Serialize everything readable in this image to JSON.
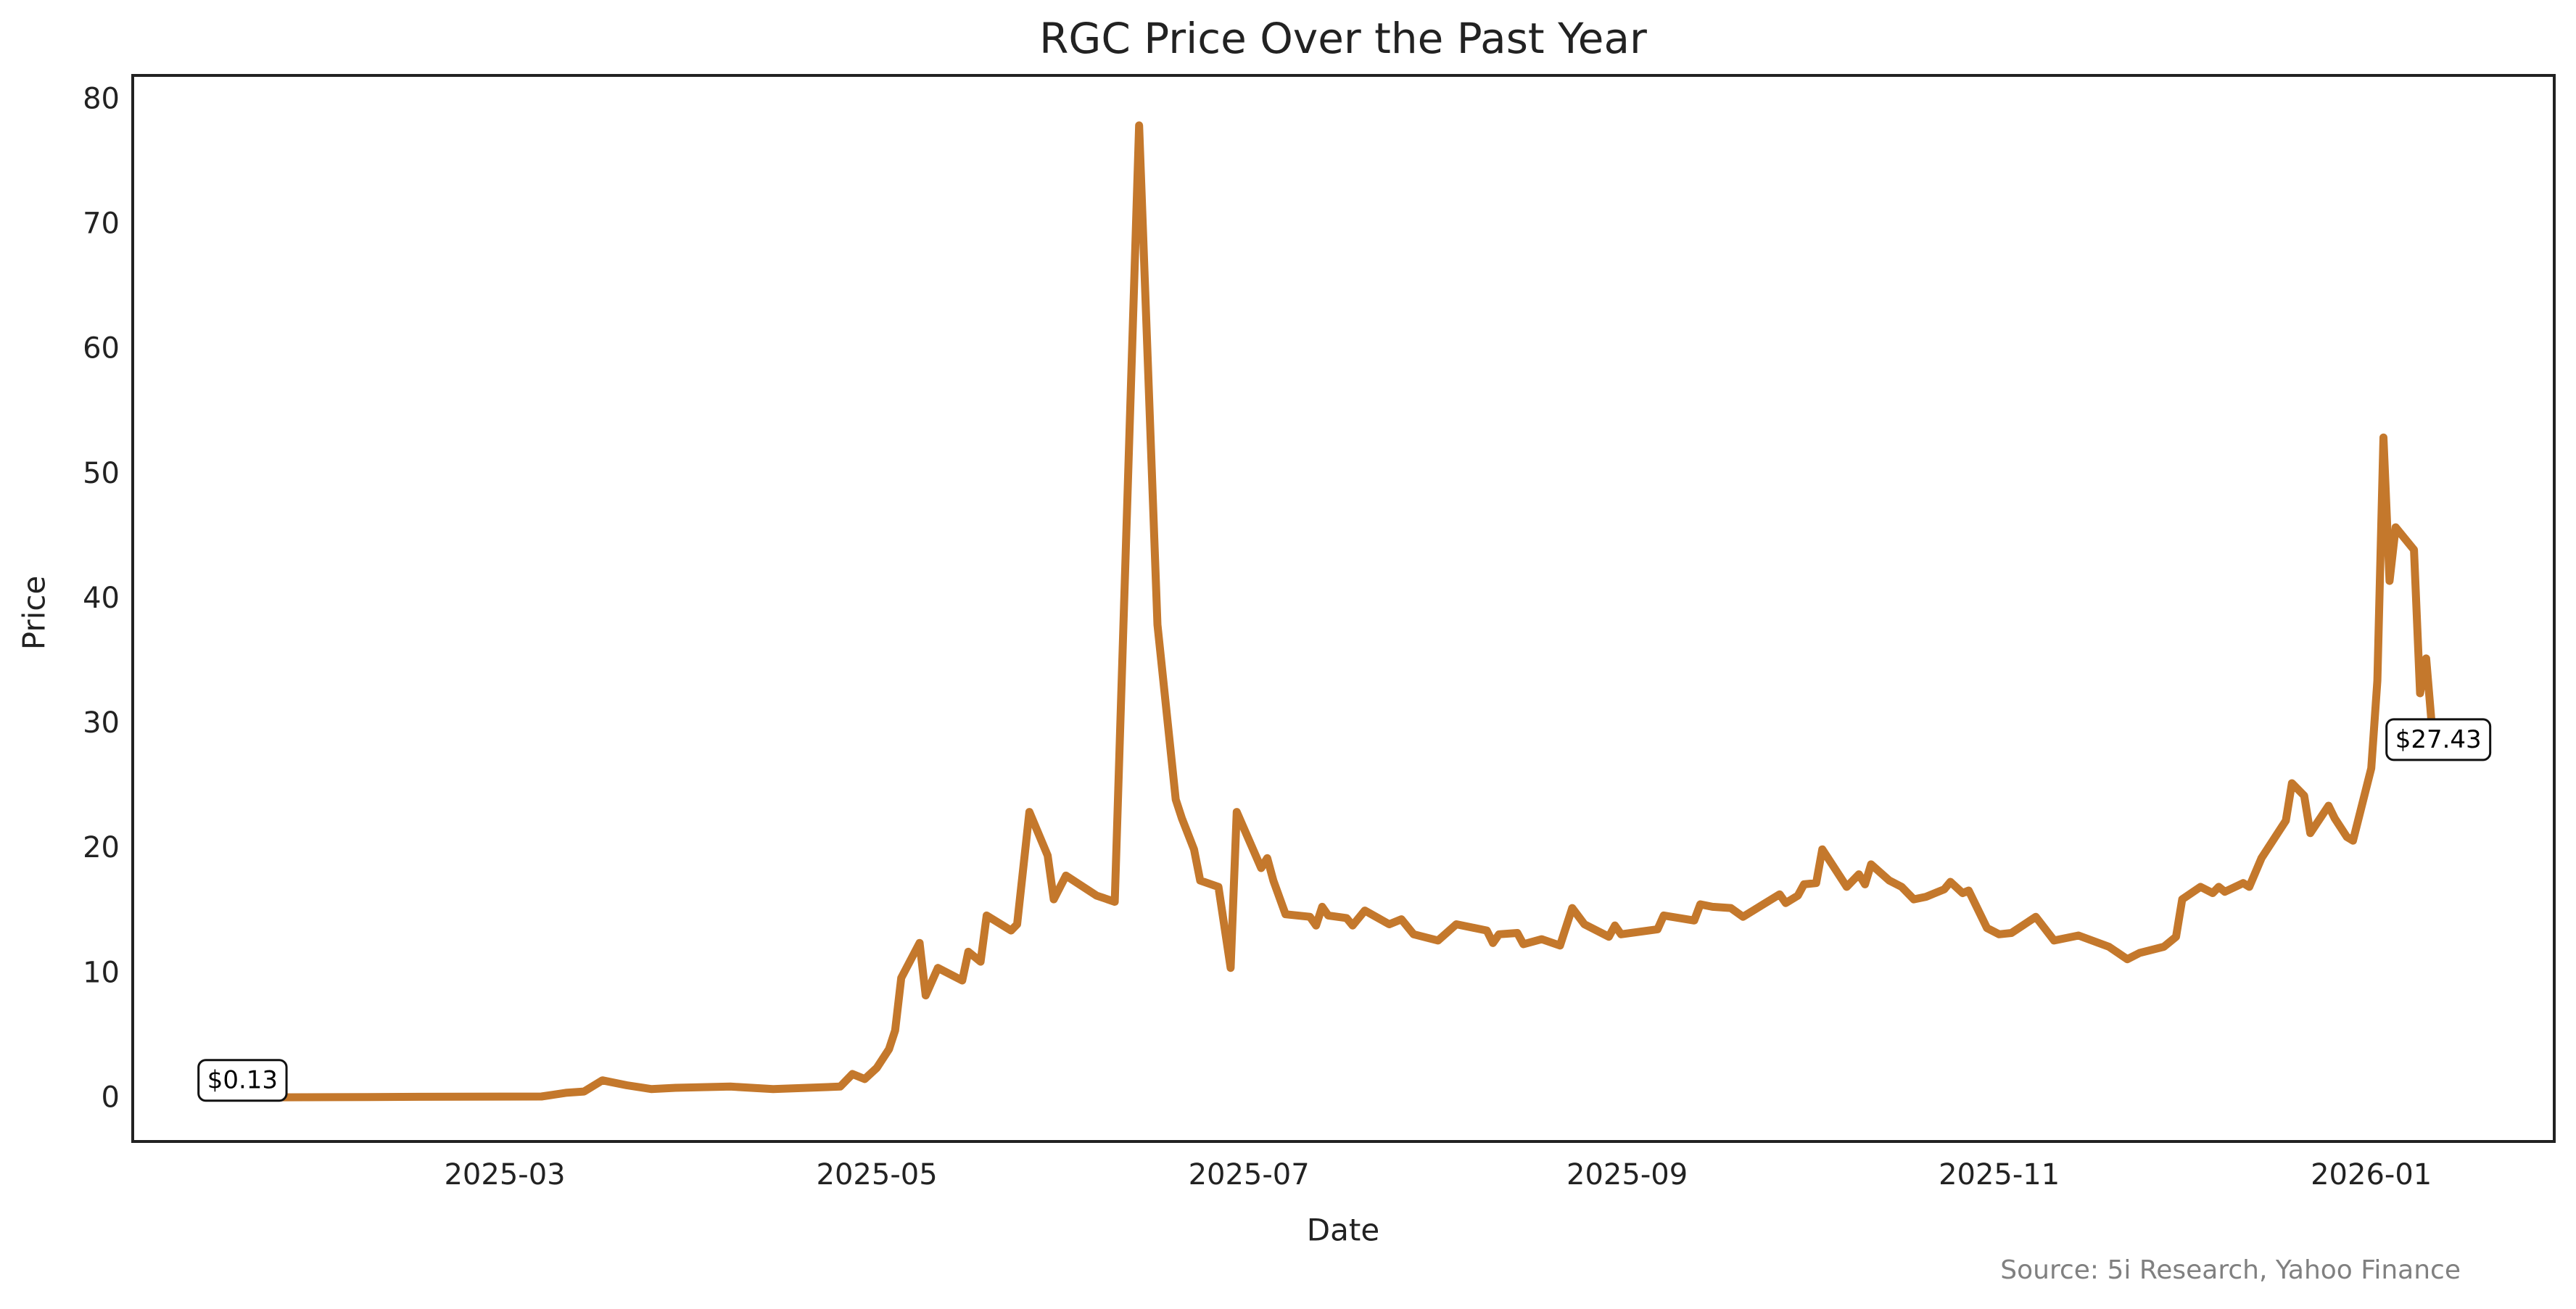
{
  "chart_data": {
    "type": "line",
    "title": "RGC Price Over the Past Year",
    "x_label": "Date",
    "y_label": "Price",
    "source": "Source: 5i Research, Yahoo Finance",
    "grid": false,
    "xlim": [
      "2024-12-30",
      "2026-01-31"
    ],
    "xticks": [
      "2025-03",
      "2025-05",
      "2025-07",
      "2025-09",
      "2025-11",
      "2026-01"
    ],
    "ylim": [
      -3.4,
      82
    ],
    "yticks": [
      0,
      10,
      20,
      30,
      40,
      50,
      60,
      70,
      80
    ],
    "x": [
      "2025-01-17",
      "2025-02-01",
      "2025-02-15",
      "2025-03-07",
      "2025-03-11",
      "2025-03-14",
      "2025-03-17",
      "2025-03-21",
      "2025-03-25",
      "2025-03-29",
      "2025-04-07",
      "2025-04-14",
      "2025-04-25",
      "2025-04-27",
      "2025-04-29",
      "2025-05-01",
      "2025-05-03",
      "2025-05-04",
      "2025-05-05",
      "2025-05-08",
      "2025-05-09",
      "2025-05-11",
      "2025-05-15",
      "2025-05-16",
      "2025-05-18",
      "2025-05-19",
      "2025-05-23",
      "2025-05-24",
      "2025-05-26",
      "2025-05-29",
      "2025-05-30",
      "2025-06-01",
      "2025-06-06",
      "2025-06-09",
      "2025-06-13",
      "2025-06-16",
      "2025-06-19",
      "2025-06-20",
      "2025-06-22",
      "2025-06-23",
      "2025-06-26",
      "2025-06-28",
      "2025-06-29",
      "2025-07-03",
      "2025-07-04",
      "2025-07-05",
      "2025-07-07",
      "2025-07-11",
      "2025-07-12",
      "2025-07-13",
      "2025-07-14",
      "2025-07-17",
      "2025-07-18",
      "2025-07-20",
      "2025-07-24",
      "2025-07-26",
      "2025-07-28",
      "2025-08-01",
      "2025-08-04",
      "2025-08-09",
      "2025-08-10",
      "2025-08-11",
      "2025-08-14",
      "2025-08-15",
      "2025-08-18",
      "2025-08-21",
      "2025-08-23",
      "2025-08-25",
      "2025-08-29",
      "2025-08-30",
      "2025-08-31",
      "2025-09-06",
      "2025-09-07",
      "2025-09-12",
      "2025-09-13",
      "2025-09-15",
      "2025-09-18",
      "2025-09-20",
      "2025-09-23",
      "2025-09-26",
      "2025-09-27",
      "2025-09-29",
      "2025-09-30",
      "2025-10-02",
      "2025-10-03",
      "2025-10-05",
      "2025-10-07",
      "2025-10-09",
      "2025-10-10",
      "2025-10-11",
      "2025-10-14",
      "2025-10-16",
      "2025-10-18",
      "2025-10-20",
      "2025-10-23",
      "2025-10-24",
      "2025-10-26",
      "2025-10-27",
      "2025-10-30",
      "2025-11-01",
      "2025-11-03",
      "2025-11-07",
      "2025-11-10",
      "2025-11-14",
      "2025-11-19",
      "2025-11-22",
      "2025-11-24",
      "2025-11-28",
      "2025-11-30",
      "2025-12-01",
      "2025-12-04",
      "2025-12-06",
      "2025-12-07",
      "2025-12-08",
      "2025-12-11",
      "2025-12-12",
      "2025-12-14",
      "2025-12-18",
      "2025-12-19",
      "2025-12-21",
      "2025-12-22",
      "2025-12-25",
      "2025-12-26",
      "2025-12-28",
      "2025-12-29",
      "2026-01-01",
      "2026-01-02",
      "2026-01-03",
      "2026-01-04",
      "2026-01-05",
      "2026-01-08",
      "2026-01-09",
      "2026-01-10",
      "2026-01-11",
      "2026-01-12"
    ],
    "series": [
      {
        "name": "RGC",
        "color": "#c4782c",
        "values": [
          0.13,
          0.15,
          0.18,
          0.2,
          0.5,
          0.6,
          1.5,
          1.1,
          0.8,
          0.9,
          1.0,
          0.8,
          1.0,
          2.0,
          1.6,
          2.5,
          4.0,
          5.5,
          9.7,
          12.5,
          8.3,
          10.5,
          9.5,
          11.8,
          11.0,
          14.7,
          13.5,
          14.0,
          23.0,
          19.5,
          16.0,
          17.9,
          16.3,
          15.8,
          78.0,
          38.0,
          24.0,
          22.5,
          20.0,
          17.5,
          17.0,
          10.5,
          23.0,
          18.5,
          19.3,
          17.5,
          14.8,
          14.6,
          13.9,
          15.4,
          14.7,
          14.5,
          13.9,
          15.1,
          14.0,
          14.4,
          13.2,
          12.7,
          14.0,
          13.5,
          12.5,
          13.2,
          13.3,
          12.4,
          12.8,
          12.3,
          15.3,
          14.0,
          13.0,
          13.9,
          13.2,
          13.6,
          14.7,
          14.3,
          15.6,
          15.4,
          15.3,
          14.6,
          15.5,
          16.4,
          15.7,
          16.3,
          17.2,
          17.3,
          20.0,
          18.5,
          17.0,
          18.0,
          17.2,
          18.8,
          17.5,
          17.0,
          16.0,
          16.2,
          16.8,
          17.4,
          16.5,
          16.7,
          13.7,
          13.2,
          13.3,
          14.6,
          12.7,
          13.1,
          12.2,
          11.2,
          11.7,
          12.2,
          13.0,
          16.0,
          17.0,
          16.5,
          17.0,
          16.6,
          17.3,
          17.0,
          19.3,
          22.3,
          25.3,
          24.3,
          21.3,
          23.5,
          22.5,
          21.0,
          20.7,
          26.5,
          33.5,
          53.0,
          41.5,
          45.8,
          44.0,
          32.5,
          35.3,
          29.5,
          27.43
        ]
      }
    ],
    "annotations": [
      {
        "x": "2025-01-17",
        "y": 0.13,
        "label": "$0.13"
      },
      {
        "x": "2026-01-12",
        "y": 27.43,
        "label": "$27.43"
      }
    ]
  }
}
